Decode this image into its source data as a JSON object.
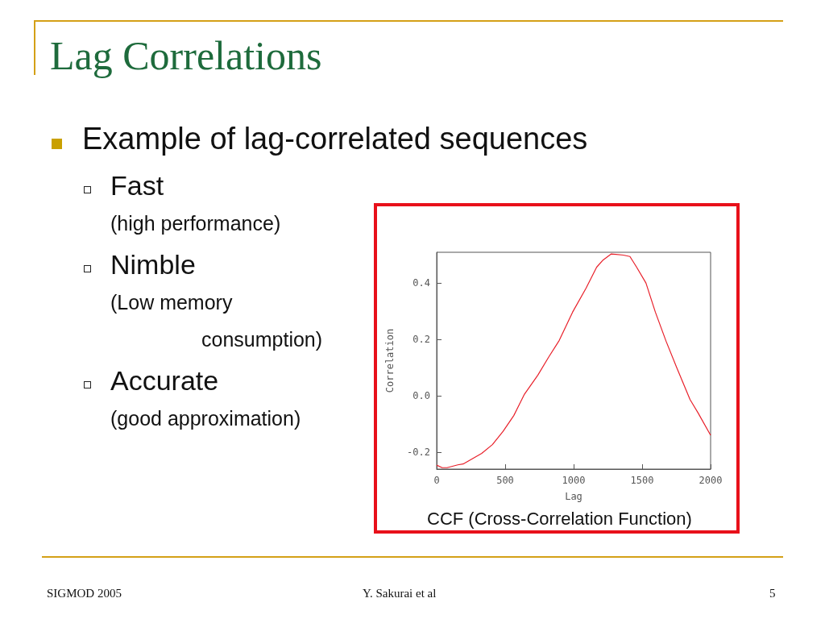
{
  "chart_data": {
    "type": "line",
    "title": "Lag Correlations",
    "xlabel": "Lag",
    "ylabel": "Correlation",
    "annotations": [
      "Example of lag-correlated sequences",
      "Fast",
      "(high performance)",
      "Nimble",
      "(Low memory",
      "consumption)",
      "Accurate",
      "(good approximation)",
      "CCF (Cross-Correlation Function)",
      "SIGMOD 2005",
      "Y. Sakurai et al",
      "5"
    ],
    "x": [
      0,
      40,
      76,
      154,
      193,
      329,
      407,
      485,
      563,
      641,
      739,
      817,
      895,
      992,
      1090,
      1168,
      1216,
      1275,
      1363,
      1411,
      1460,
      1528,
      1597,
      1675,
      1753,
      1850,
      1908,
      2000
    ],
    "series": [
      {
        "color": "#e8202a",
        "values": [
          -0.246,
          -0.255,
          -0.255,
          -0.245,
          -0.242,
          -0.204,
          -0.173,
          -0.126,
          -0.07,
          0.006,
          0.074,
          0.137,
          0.197,
          0.297,
          0.382,
          0.457,
          0.483,
          0.504,
          0.5,
          0.495,
          0.457,
          0.401,
          0.297,
          0.194,
          0.1,
          -0.013,
          -0.06,
          -0.14
        ]
      }
    ],
    "xlim": [
      0,
      2000
    ],
    "xticks": [
      0,
      500,
      1000,
      1500,
      2000
    ],
    "ylim": [
      -0.26,
      0.51
    ],
    "yticks": [
      {
        "value": -0.2,
        "label": "-0.2"
      },
      {
        "value": 0,
        "label": "0.0"
      },
      {
        "value": 0.2,
        "label": "0.2"
      },
      {
        "value": 0.4,
        "label": "0.4"
      }
    ],
    "grid": false,
    "marker": "none",
    "line_style": "solid"
  }
}
